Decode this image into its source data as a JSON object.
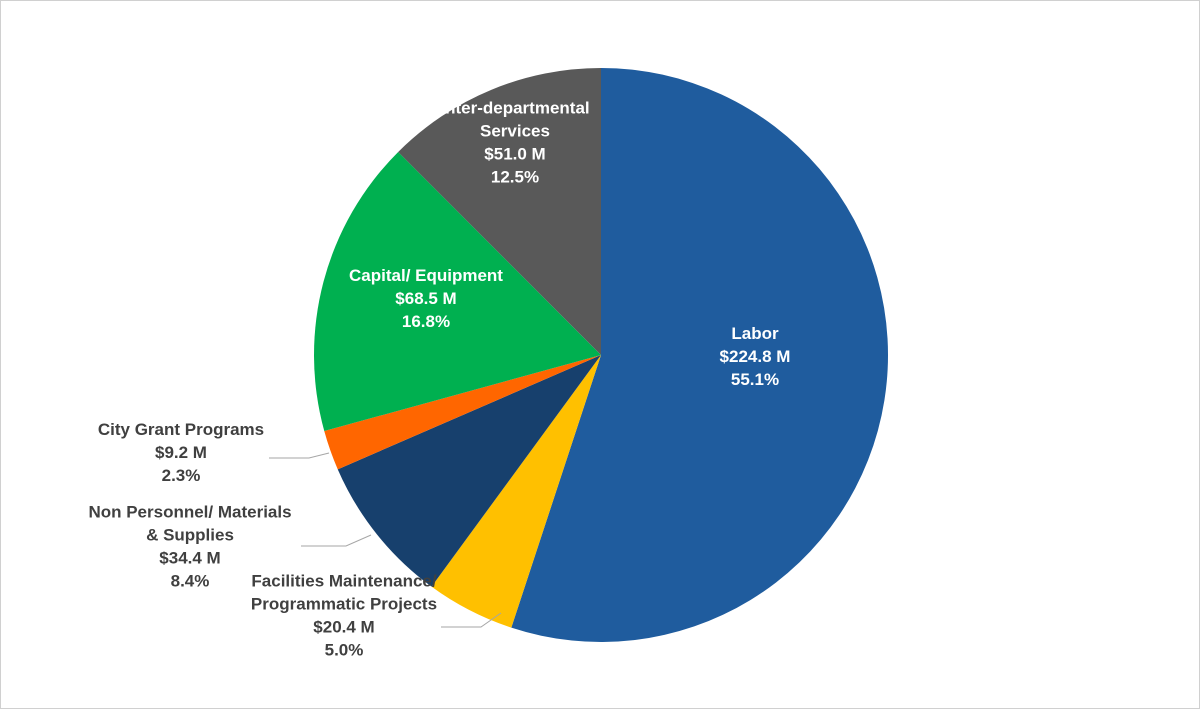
{
  "chart_data": {
    "type": "pie",
    "title": "",
    "slices": [
      {
        "name": "Labor",
        "lines": [
          "Labor",
          "$224.8 M",
          "55.1%"
        ],
        "value": 224.8,
        "percent": 55.1,
        "color": "#1F5C9E",
        "label_color": "#FFFFFF",
        "label_placement": "inside"
      },
      {
        "name": "Facilities Maintenance/ Programmatic Projects",
        "lines": [
          "Facilities Maintenance/",
          "Programmatic Projects",
          "$20.4 M",
          "5.0%"
        ],
        "value": 20.4,
        "percent": 5.0,
        "color": "#FFC000",
        "label_color": "#404040",
        "label_placement": "outside-below"
      },
      {
        "name": "Non Personnel/ Materials & Supplies",
        "lines": [
          "Non Personnel/ Materials",
          "& Supplies",
          "$34.4 M",
          "8.4%"
        ],
        "value": 34.4,
        "percent": 8.4,
        "color": "#17406D",
        "label_color": "#404040",
        "label_placement": "outside-left"
      },
      {
        "name": "City Grant Programs",
        "lines": [
          "City Grant Programs",
          "$9.2 M",
          "2.3%"
        ],
        "value": 9.2,
        "percent": 2.3,
        "color": "#FF6600",
        "label_color": "#404040",
        "label_placement": "outside-left"
      },
      {
        "name": "Capital/ Equipment",
        "lines": [
          "Capital/ Equipment",
          "$68.5 M",
          "16.8%"
        ],
        "value": 68.5,
        "percent": 16.8,
        "color": "#00B050",
        "label_color": "#FFFFFF",
        "label_placement": "inside"
      },
      {
        "name": "Inter-departmental Services",
        "lines": [
          "Inter-departmental",
          "Services",
          "$51.0 M",
          "12.5%"
        ],
        "value": 51.0,
        "percent": 12.5,
        "color": "#595959",
        "label_color": "#FFFFFF",
        "label_placement": "inside"
      }
    ],
    "start_angle": "12 o'clock",
    "direction": "clockwise",
    "legend": "none"
  }
}
